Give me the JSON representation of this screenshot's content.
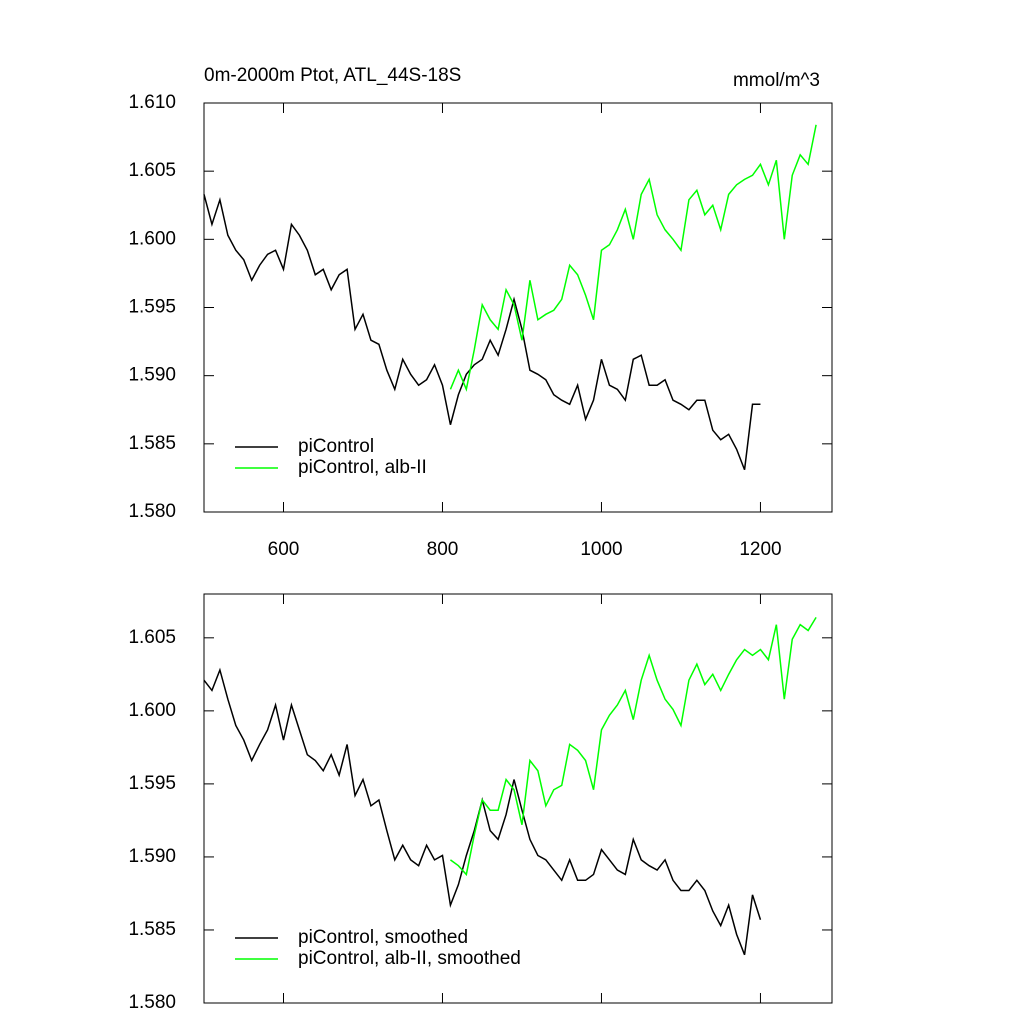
{
  "chart_data": [
    {
      "type": "line",
      "title": "0m-2000m Ptot, ATL_44S-18S",
      "units": "mmol/m^3",
      "xlim": [
        500,
        1290
      ],
      "xticks": [
        600,
        800,
        1000,
        1200
      ],
      "xtick_labels": true,
      "ylim": [
        1.58,
        1.61
      ],
      "yticks": [
        {
          "value": 1.58,
          "label": "1.580"
        },
        1.585,
        {
          "value": 1.59,
          "label": "1.590"
        },
        1.595,
        {
          "value": 1.6,
          "label": "1.600"
        },
        1.605,
        {
          "value": 1.61,
          "label": "1.610"
        }
      ],
      "legend": "lower left",
      "series": [
        {
          "name": "piControl",
          "color": "#000000",
          "x": [
            500,
            510,
            520,
            530,
            540,
            550,
            560,
            570,
            580,
            590,
            600,
            610,
            620,
            630,
            640,
            650,
            660,
            670,
            680,
            690,
            700,
            710,
            720,
            730,
            740,
            750,
            760,
            770,
            780,
            790,
            800,
            810,
            820,
            830,
            840,
            850,
            860,
            870,
            880,
            890,
            900,
            910,
            920,
            930,
            940,
            950,
            960,
            970,
            980,
            990,
            1000,
            1010,
            1020,
            1030,
            1040,
            1050,
            1060,
            1070,
            1080,
            1090,
            1100,
            1110,
            1120,
            1130,
            1140,
            1150,
            1160,
            1170,
            1180,
            1190,
            1200
          ],
          "values": [
            1.6033,
            1.6011,
            1.6029,
            1.6003,
            1.5992,
            1.5985,
            1.597,
            1.5981,
            1.5989,
            1.5992,
            1.5978,
            1.6011,
            1.6003,
            1.5992,
            1.5974,
            1.5978,
            1.5963,
            1.5974,
            1.5978,
            1.5934,
            1.5945,
            1.5926,
            1.5923,
            1.5904,
            1.589,
            1.5912,
            1.5901,
            1.5893,
            1.5897,
            1.5908,
            1.5893,
            1.5864,
            1.5886,
            1.5901,
            1.5908,
            1.5912,
            1.5926,
            1.5915,
            1.5934,
            1.5956,
            1.5934,
            1.5904,
            1.5901,
            1.5897,
            1.5886,
            1.5882,
            1.5879,
            1.5893,
            1.5868,
            1.5882,
            1.5912,
            1.5893,
            1.589,
            1.5882,
            1.5912,
            1.5915,
            1.5893,
            1.5893,
            1.5897,
            1.5882,
            1.5879,
            1.5875,
            1.5882,
            1.5882,
            1.586,
            1.5853,
            1.5857,
            1.5846,
            1.5831,
            1.5879,
            1.5879
          ]
        },
        {
          "name": "piControl, alb-II",
          "color": "#00ff00",
          "x": [
            810,
            820,
            830,
            840,
            850,
            860,
            870,
            880,
            890,
            900,
            910,
            920,
            930,
            940,
            950,
            960,
            970,
            980,
            990,
            1000,
            1010,
            1020,
            1030,
            1040,
            1050,
            1060,
            1070,
            1080,
            1090,
            1100,
            1110,
            1120,
            1130,
            1140,
            1150,
            1160,
            1170,
            1180,
            1190,
            1200,
            1210,
            1220,
            1230,
            1240,
            1250,
            1260,
            1270
          ],
          "values": [
            1.589,
            1.5904,
            1.589,
            1.5919,
            1.5952,
            1.5941,
            1.5934,
            1.5963,
            1.5952,
            1.5926,
            1.597,
            1.5941,
            1.5945,
            1.5948,
            1.5956,
            1.5981,
            1.5974,
            1.5959,
            1.5941,
            1.5992,
            1.5996,
            1.6007,
            1.6022,
            1.6,
            1.6033,
            1.6044,
            1.6018,
            1.6007,
            1.6,
            1.5992,
            1.6029,
            1.6036,
            1.6018,
            1.6025,
            1.6007,
            1.6033,
            1.604,
            1.6044,
            1.6047,
            1.6055,
            1.604,
            1.6058,
            1.6,
            1.6047,
            1.6062,
            1.6055,
            1.6084
          ]
        }
      ]
    },
    {
      "type": "line",
      "xlim": [
        500,
        1290
      ],
      "xticks": [
        600,
        800,
        1000,
        1200
      ],
      "xtick_labels": false,
      "ylim": [
        1.58,
        1.608
      ],
      "yticks": [
        {
          "value": 1.58,
          "label": "1.580"
        },
        1.585,
        {
          "value": 1.59,
          "label": "1.590"
        },
        1.595,
        {
          "value": 1.6,
          "label": "1.600"
        },
        1.605
      ],
      "legend": "lower left",
      "series": [
        {
          "name": "piControl, smoothed",
          "color": "#000000",
          "x": [
            500,
            510,
            520,
            530,
            540,
            550,
            560,
            570,
            580,
            590,
            600,
            610,
            620,
            630,
            640,
            650,
            660,
            670,
            680,
            690,
            700,
            710,
            720,
            730,
            740,
            750,
            760,
            770,
            780,
            790,
            800,
            810,
            820,
            830,
            840,
            850,
            860,
            870,
            880,
            890,
            900,
            910,
            920,
            930,
            940,
            950,
            960,
            970,
            980,
            990,
            1000,
            1010,
            1020,
            1030,
            1040,
            1050,
            1060,
            1070,
            1080,
            1090,
            1100,
            1110,
            1120,
            1130,
            1140,
            1150,
            1160,
            1170,
            1180,
            1190,
            1200
          ],
          "values": [
            1.6021,
            1.6014,
            1.6028,
            1.6008,
            1.599,
            1.598,
            1.5966,
            1.5977,
            1.5987,
            1.6004,
            1.598,
            1.6004,
            1.5987,
            1.597,
            1.5966,
            1.5959,
            1.597,
            1.5956,
            1.5977,
            1.5942,
            1.5953,
            1.5935,
            1.5939,
            1.5918,
            1.5898,
            1.5908,
            1.5898,
            1.5894,
            1.5908,
            1.5898,
            1.5901,
            1.5867,
            1.5881,
            1.5901,
            1.5918,
            1.5939,
            1.5918,
            1.5912,
            1.5929,
            1.5953,
            1.5932,
            1.5912,
            1.5901,
            1.5898,
            1.5891,
            1.5884,
            1.5898,
            1.5884,
            1.5884,
            1.5888,
            1.5905,
            1.5898,
            1.5891,
            1.5888,
            1.5912,
            1.5898,
            1.5894,
            1.5891,
            1.5898,
            1.5884,
            1.5877,
            1.5877,
            1.5884,
            1.5877,
            1.5863,
            1.5853,
            1.5867,
            1.5847,
            1.5833,
            1.5874,
            1.5857
          ]
        },
        {
          "name": "piControl, alb-II, smoothed",
          "color": "#00ff00",
          "x": [
            810,
            820,
            830,
            840,
            850,
            860,
            870,
            880,
            890,
            900,
            910,
            920,
            930,
            940,
            950,
            960,
            970,
            980,
            990,
            1000,
            1010,
            1020,
            1030,
            1040,
            1050,
            1060,
            1070,
            1080,
            1090,
            1100,
            1110,
            1120,
            1130,
            1140,
            1150,
            1160,
            1170,
            1180,
            1190,
            1200,
            1210,
            1220,
            1230,
            1240,
            1250,
            1260,
            1270
          ],
          "values": [
            1.5898,
            1.5894,
            1.5888,
            1.5915,
            1.5939,
            1.5932,
            1.5932,
            1.5953,
            1.5946,
            1.5922,
            1.5966,
            1.5959,
            1.5935,
            1.5946,
            1.5949,
            1.5977,
            1.5973,
            1.5966,
            1.5946,
            1.5987,
            1.5997,
            1.6004,
            1.6014,
            1.5994,
            1.6021,
            1.6038,
            1.6021,
            1.6008,
            1.6001,
            1.599,
            1.6021,
            1.6032,
            1.6018,
            1.6025,
            1.6014,
            1.6025,
            1.6035,
            1.6042,
            1.6038,
            1.6042,
            1.6035,
            1.6059,
            1.6008,
            1.6049,
            1.6059,
            1.6055,
            1.6064
          ]
        }
      ]
    }
  ]
}
